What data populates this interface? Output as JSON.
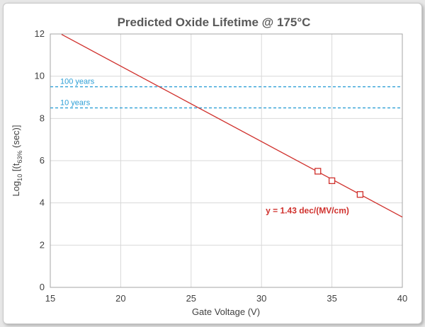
{
  "chart_data": {
    "type": "scatter",
    "title": "Predicted Oxide Lifetime @ 175°C",
    "xlabel": "Gate Voltage (V)",
    "ylabel": "Log",
    "ylabel_sub": "10",
    "ylabel_mid": " [(t",
    "ylabel_sub2": "63%",
    "ylabel_end": " (sec)]",
    "xlim": [
      15,
      40
    ],
    "ylim": [
      0,
      12
    ],
    "x_ticks": [
      15,
      20,
      25,
      30,
      35,
      40
    ],
    "y_ticks": [
      0,
      2,
      4,
      6,
      8,
      10,
      12
    ],
    "grid": true,
    "series": [
      {
        "marker": "square-open",
        "color": "#d0312d",
        "points": [
          {
            "x": 34,
            "y": 5.5
          },
          {
            "x": 35,
            "y": 5.05
          },
          {
            "x": 37,
            "y": 4.4
          }
        ]
      }
    ],
    "fit_line": {
      "color": "#d0312d",
      "x": [
        15.8,
        40
      ],
      "y": [
        11.98,
        3.33
      ],
      "label": "y = 1.43 dec/(MV/cm)",
      "label_at": {
        "x": 30.3,
        "y": 3.5
      }
    },
    "reference_lines": [
      {
        "label": "100 years",
        "y": 9.5,
        "color": "#2e9fd6"
      },
      {
        "label": "10 years",
        "y": 8.5,
        "color": "#2e9fd6"
      }
    ]
  }
}
